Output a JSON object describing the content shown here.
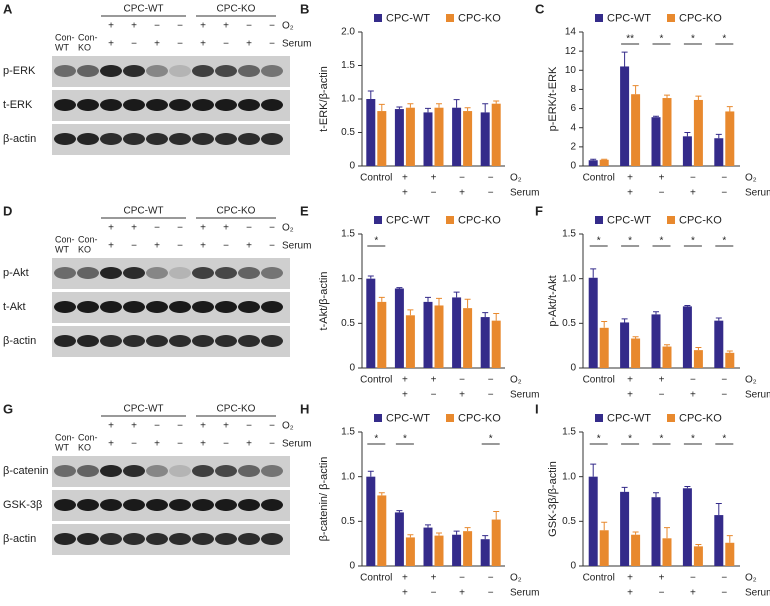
{
  "blots": [
    {
      "panel": "A",
      "groups": [
        "CPC-WT",
        "CPC-KO"
      ],
      "o2_label": "O₂",
      "serum_label": "Serum",
      "o2_signs": [
        "+",
        "+",
        "−",
        "−",
        "+",
        "+",
        "−",
        "−"
      ],
      "serum_signs": [
        "+",
        "−",
        "+",
        "−",
        "+",
        "−",
        "+",
        "−"
      ],
      "controls": [
        [
          "Con-",
          "WT"
        ],
        [
          "Con-",
          "KO"
        ]
      ],
      "rows": [
        "p-ERK",
        "t-ERK",
        "β-actin"
      ]
    },
    {
      "panel": "D",
      "groups": [
        "CPC-WT",
        "CPC-KO"
      ],
      "o2_label": "O₂",
      "serum_label": "Serum",
      "o2_signs": [
        "+",
        "+",
        "−",
        "−",
        "+",
        "+",
        "−",
        "−"
      ],
      "serum_signs": [
        "+",
        "−",
        "+",
        "−",
        "+",
        "−",
        "+",
        "−"
      ],
      "controls": [
        [
          "Con-",
          "WT"
        ],
        [
          "Con-",
          "KO"
        ]
      ],
      "rows": [
        "p-Akt",
        "t-Akt",
        "β-actin"
      ]
    },
    {
      "panel": "G",
      "groups": [
        "CPC-WT",
        "CPC-KO"
      ],
      "o2_label": "O₂",
      "serum_label": "Serum",
      "o2_signs": [
        "+",
        "+",
        "−",
        "−",
        "+",
        "+",
        "−",
        "−"
      ],
      "serum_signs": [
        "+",
        "−",
        "+",
        "−",
        "+",
        "−",
        "+",
        "−"
      ],
      "controls": [
        [
          "Con-",
          "WT"
        ],
        [
          "Con-",
          "KO"
        ]
      ],
      "rows": [
        "β-catenin",
        "GSK-3β",
        "β-actin"
      ]
    }
  ],
  "chart_data": [
    {
      "type": "bar",
      "panel": "B",
      "y_label": "t-ERK/β-actin",
      "categories": [
        "Control",
        null,
        null,
        null,
        null
      ],
      "o2_signs": [
        null,
        "+",
        "+",
        "−",
        "−"
      ],
      "serum_signs": [
        null,
        "+",
        "−",
        "+",
        "−"
      ],
      "o2_label": "O₂",
      "serum_label": "Serum",
      "series": [
        {
          "name": "CPC-WT",
          "color": "#342b8a",
          "values": [
            1.0,
            0.85,
            0.8,
            0.87,
            0.8
          ],
          "errors": [
            0.12,
            0.03,
            0.06,
            0.12,
            0.13
          ]
        },
        {
          "name": "CPC-KO",
          "color": "#e8892e",
          "values": [
            0.82,
            0.87,
            0.87,
            0.82,
            0.93
          ],
          "errors": [
            0.1,
            0.06,
            0.06,
            0.05,
            0.04
          ]
        }
      ],
      "significance": [
        null,
        null,
        null,
        null,
        null
      ],
      "ylim": [
        0,
        2
      ],
      "yticks": [
        0,
        0.5,
        {
          "value": 1,
          "label": "1.0"
        },
        1.5,
        {
          "value": 2,
          "label": "2.0"
        }
      ]
    },
    {
      "type": "bar",
      "panel": "C",
      "y_label": "p-ERK/t-ERK",
      "categories": [
        "Control",
        null,
        null,
        null,
        null
      ],
      "o2_signs": [
        null,
        "+",
        "+",
        "−",
        "−"
      ],
      "serum_signs": [
        null,
        "+",
        "−",
        "+",
        "−"
      ],
      "o2_label": "O₂",
      "serum_label": "Serum",
      "series": [
        {
          "name": "CPC-WT",
          "color": "#342b8a",
          "values": [
            0.6,
            10.4,
            5.1,
            3.1,
            2.9
          ],
          "errors": [
            0.1,
            1.5,
            0.1,
            0.4,
            0.4
          ]
        },
        {
          "name": "CPC-KO",
          "color": "#e8892e",
          "values": [
            0.65,
            7.5,
            7.1,
            6.9,
            5.7
          ],
          "errors": [
            0.05,
            0.9,
            0.3,
            0.4,
            0.5
          ]
        }
      ],
      "significance": [
        null,
        "**",
        "*",
        "*",
        "*"
      ],
      "ylim": [
        0,
        14
      ],
      "yticks": [
        0,
        2,
        4,
        6,
        8,
        10,
        12,
        14
      ]
    },
    {
      "type": "bar",
      "panel": "E",
      "y_label": "t-Akt/β-actin",
      "categories": [
        "Control",
        null,
        null,
        null,
        null
      ],
      "o2_signs": [
        null,
        "+",
        "+",
        "−",
        "−"
      ],
      "serum_signs": [
        null,
        "+",
        "−",
        "+",
        "−"
      ],
      "o2_label": "O₂",
      "serum_label": "Serum",
      "series": [
        {
          "name": "CPC-WT",
          "color": "#342b8a",
          "values": [
            1.0,
            0.89,
            0.74,
            0.79,
            0.57
          ],
          "errors": [
            0.03,
            0.01,
            0.05,
            0.06,
            0.05
          ]
        },
        {
          "name": "CPC-KO",
          "color": "#e8892e",
          "values": [
            0.74,
            0.59,
            0.7,
            0.67,
            0.53
          ],
          "errors": [
            0.05,
            0.06,
            0.08,
            0.1,
            0.08
          ]
        }
      ],
      "significance": [
        "*",
        null,
        null,
        null,
        null
      ],
      "ylim": [
        0,
        1.5
      ],
      "yticks": [
        0,
        0.5,
        {
          "value": 1,
          "label": "1.0"
        },
        1.5
      ]
    },
    {
      "type": "bar",
      "panel": "F",
      "y_label": "p-Akt/t-Akt",
      "categories": [
        "Control",
        null,
        null,
        null,
        null
      ],
      "o2_signs": [
        null,
        "+",
        "+",
        "−",
        "−"
      ],
      "serum_signs": [
        null,
        "+",
        "−",
        "+",
        "−"
      ],
      "o2_label": "O₂",
      "serum_label": "Serum",
      "series": [
        {
          "name": "CPC-WT",
          "color": "#342b8a",
          "values": [
            1.01,
            0.51,
            0.6,
            0.69,
            0.53
          ],
          "errors": [
            0.1,
            0.04,
            0.03,
            0.01,
            0.03
          ]
        },
        {
          "name": "CPC-KO",
          "color": "#e8892e",
          "values": [
            0.45,
            0.33,
            0.24,
            0.2,
            0.17
          ],
          "errors": [
            0.07,
            0.02,
            0.02,
            0.03,
            0.02
          ]
        }
      ],
      "significance": [
        "*",
        "*",
        "*",
        "*",
        "*"
      ],
      "ylim": [
        0,
        1.5
      ],
      "yticks": [
        0,
        0.5,
        {
          "value": 1,
          "label": "1.0"
        },
        1.5
      ]
    },
    {
      "type": "bar",
      "panel": "H",
      "y_label": "β-catenin/ β-actin",
      "categories": [
        "Control",
        null,
        null,
        null,
        null
      ],
      "o2_signs": [
        null,
        "+",
        "+",
        "−",
        "−"
      ],
      "serum_signs": [
        null,
        "+",
        "−",
        "+",
        "−"
      ],
      "o2_label": "O₂",
      "serum_label": "Serum",
      "series": [
        {
          "name": "CPC-WT",
          "color": "#342b8a",
          "values": [
            1.0,
            0.6,
            0.43,
            0.35,
            0.3
          ],
          "errors": [
            0.06,
            0.02,
            0.03,
            0.04,
            0.04
          ]
        },
        {
          "name": "CPC-KO",
          "color": "#e8892e",
          "values": [
            0.79,
            0.32,
            0.34,
            0.39,
            0.52
          ],
          "errors": [
            0.03,
            0.03,
            0.03,
            0.04,
            0.09
          ]
        }
      ],
      "significance": [
        "*",
        "*",
        null,
        null,
        "*"
      ],
      "ylim": [
        0,
        1.5
      ],
      "yticks": [
        0,
        0.5,
        {
          "value": 1,
          "label": "1.0"
        },
        1.5
      ]
    },
    {
      "type": "bar",
      "panel": "I",
      "y_label": "GSK-3β/β-actin",
      "categories": [
        "Control",
        null,
        null,
        null,
        null
      ],
      "o2_signs": [
        null,
        "+",
        "+",
        "−",
        "−"
      ],
      "serum_signs": [
        null,
        "+",
        "−",
        "+",
        "−"
      ],
      "o2_label": "O₂",
      "serum_label": "Serum",
      "series": [
        {
          "name": "CPC-WT",
          "color": "#342b8a",
          "values": [
            1.0,
            0.83,
            0.77,
            0.87,
            0.57
          ],
          "errors": [
            0.14,
            0.05,
            0.05,
            0.02,
            0.13
          ]
        },
        {
          "name": "CPC-KO",
          "color": "#e8892e",
          "values": [
            0.4,
            0.35,
            0.31,
            0.22,
            0.26
          ],
          "errors": [
            0.09,
            0.03,
            0.12,
            0.02,
            0.08
          ]
        }
      ],
      "significance": [
        "*",
        "*",
        "*",
        "*",
        "*"
      ],
      "ylim": [
        0,
        1.5
      ],
      "yticks": [
        0,
        0.5,
        {
          "value": 1,
          "label": "1.0"
        },
        1.5
      ]
    }
  ]
}
